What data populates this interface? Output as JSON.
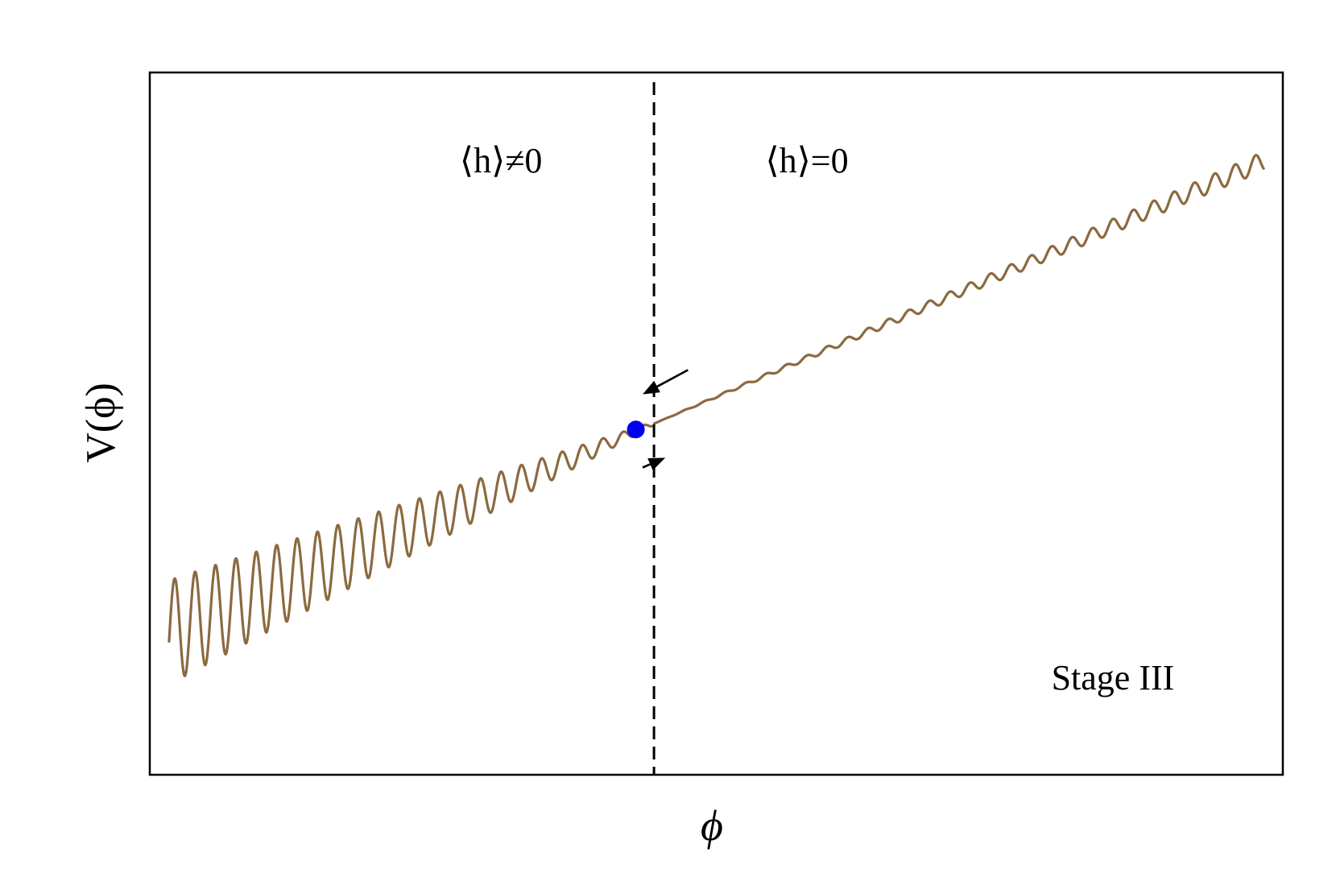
{
  "chart_data": {
    "type": "line",
    "title": "",
    "xlabel": "ϕ",
    "ylabel": "V(ϕ)",
    "xlim": [
      0,
      10
    ],
    "ylim": [
      -3.6,
      3.6
    ],
    "x_ticks": [],
    "y_ticks": [],
    "grid": false,
    "legend": "none",
    "series": [
      {
        "description_color": "#8b6a3f",
        "function": "V(ϕ) = 0.5·(ϕ − 4.45) − A(ϕ)·cos(2π·(ϕ − 4.27)/0.18), A = 0.02 + 0.12·(4.45 − ϕ) for ϕ < 4.45, A = 0.018·(ϕ − 4.45) for ϕ ≥ 4.45",
        "x_range": [
          0.17,
          9.83
        ],
        "color": "#8b6a3f"
      }
    ],
    "threshold_line": {
      "x": 4.45,
      "style": "dashed",
      "color": "#000000"
    },
    "marker_point": {
      "x": 4.29,
      "y": -0.06,
      "color": "#0000ee"
    },
    "arrows": [
      {
        "from": [
          4.75,
          0.55
        ],
        "to": [
          4.35,
          0.3
        ],
        "color": "#000000"
      },
      {
        "from": [
          4.35,
          -0.45
        ],
        "to": [
          4.55,
          -0.35
        ],
        "color": "#000000"
      }
    ],
    "annotations": [
      {
        "text": "⟨h⟩≠0",
        "x": 3.1,
        "y": 2.7
      },
      {
        "text": "⟨h⟩=0",
        "x": 5.8,
        "y": 2.7
      },
      {
        "text": "Stage III",
        "x": 8.5,
        "y": -2.6
      }
    ]
  }
}
